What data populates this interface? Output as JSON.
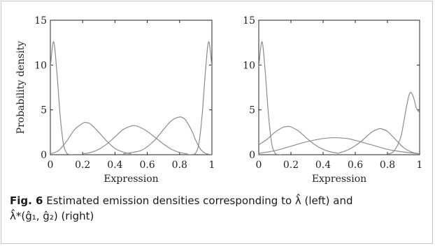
{
  "caption": {
    "label": "Fig. 6",
    "line1": "Estimated emission densities corresponding to λ̂ (left) and",
    "line2": "λ̂*(ĝ₁, ĝ₂) (right)"
  },
  "chart_data": [
    {
      "type": "line",
      "title": "",
      "xlabel": "Expression",
      "ylabel": "Probability density",
      "xlim": [
        0,
        1
      ],
      "ylim": [
        0,
        15
      ],
      "xticks": [
        "0",
        "0.2",
        "0.4",
        "0.6",
        "0.8",
        "1"
      ],
      "xtick_values": [
        0,
        0.2,
        0.4,
        0.6,
        0.8,
        1
      ],
      "yticks": [
        "0",
        "5",
        "10",
        "15"
      ],
      "ytick_values": [
        0,
        5,
        10,
        15
      ],
      "grid": false,
      "legend": "none",
      "line_color": "#8c8c8c",
      "series": [
        {
          "x": [
            0,
            0.02,
            0.04,
            0.06,
            0.08,
            0.1,
            0.12,
            0.14
          ],
          "y": [
            9.8,
            12.6,
            9.3,
            4.5,
            1.3,
            0.2,
            0.03,
            0
          ]
        },
        {
          "x": [
            0,
            0.05,
            0.1,
            0.15,
            0.2,
            0.22,
            0.25,
            0.3,
            0.35,
            0.4,
            0.45,
            0.5
          ],
          "y": [
            0.1,
            0.45,
            1.5,
            2.8,
            3.5,
            3.6,
            3.4,
            2.5,
            1.5,
            0.7,
            0.3,
            0.1
          ]
        },
        {
          "x": [
            0.2,
            0.25,
            0.3,
            0.35,
            0.4,
            0.45,
            0.5,
            0.52,
            0.55,
            0.6,
            0.65,
            0.7,
            0.75,
            0.8,
            0.85
          ],
          "y": [
            0.1,
            0.25,
            0.6,
            1.2,
            2.0,
            2.8,
            3.2,
            3.25,
            3.1,
            2.6,
            1.9,
            1.2,
            0.6,
            0.25,
            0.1
          ]
        },
        {
          "x": [
            0.45,
            0.55,
            0.6,
            0.65,
            0.7,
            0.75,
            0.8,
            0.83,
            0.85,
            0.88,
            0.9,
            0.93,
            0.96,
            1
          ],
          "y": [
            0.1,
            0.4,
            0.9,
            1.7,
            2.8,
            3.8,
            4.2,
            4.0,
            3.5,
            2.5,
            1.6,
            0.6,
            0.15,
            0
          ]
        },
        {
          "x": [
            0.86,
            0.88,
            0.9,
            0.92,
            0.94,
            0.96,
            0.98,
            1
          ],
          "y": [
            0,
            0.03,
            0.2,
            1.3,
            4.5,
            9.3,
            12.6,
            9.8
          ]
        }
      ]
    },
    {
      "type": "line",
      "title": "",
      "xlabel": "Expression",
      "ylabel": "",
      "xlim": [
        0,
        1
      ],
      "ylim": [
        0,
        15
      ],
      "xticks": [
        "0",
        "0.2",
        "0.4",
        "0.6",
        "0.8",
        "1"
      ],
      "xtick_values": [
        0,
        0.2,
        0.4,
        0.6,
        0.8,
        1
      ],
      "yticks": [
        "0",
        "5",
        "10",
        "15"
      ],
      "ytick_values": [
        0,
        5,
        10,
        15
      ],
      "grid": false,
      "legend": "none",
      "line_color": "#8c8c8c",
      "series": [
        {
          "x": [
            0,
            0.02,
            0.04,
            0.06,
            0.08,
            0.1,
            0.12,
            0.14
          ],
          "y": [
            9.8,
            12.6,
            9.3,
            4.5,
            1.3,
            0.2,
            0.03,
            0
          ]
        },
        {
          "x": [
            0,
            0.05,
            0.1,
            0.15,
            0.18,
            0.2,
            0.25,
            0.3,
            0.35,
            0.4,
            0.45,
            0.5
          ],
          "y": [
            1.1,
            1.7,
            2.5,
            3.05,
            3.15,
            3.1,
            2.6,
            1.8,
            1.1,
            0.6,
            0.3,
            0.15
          ]
        },
        {
          "x": [
            0,
            0.1,
            0.2,
            0.3,
            0.4,
            0.47,
            0.55,
            0.6,
            0.7,
            0.8,
            0.9,
            1
          ],
          "y": [
            0.15,
            0.45,
            0.95,
            1.45,
            1.8,
            1.9,
            1.8,
            1.6,
            1.1,
            0.6,
            0.3,
            0.1
          ]
        },
        {
          "x": [
            0.5,
            0.55,
            0.6,
            0.65,
            0.7,
            0.74,
            0.76,
            0.8,
            0.85,
            0.9,
            0.95,
            1
          ],
          "y": [
            0.2,
            0.5,
            1.0,
            1.7,
            2.5,
            2.85,
            2.9,
            2.6,
            1.7,
            0.8,
            0.3,
            0.1
          ]
        },
        {
          "x": [
            0.8,
            0.84,
            0.88,
            0.9,
            0.92,
            0.94,
            0.96,
            0.98,
            1
          ],
          "y": [
            0.05,
            0.4,
            1.8,
            3.5,
            5.5,
            6.9,
            6.5,
            5.2,
            4.7
          ]
        }
      ]
    }
  ]
}
